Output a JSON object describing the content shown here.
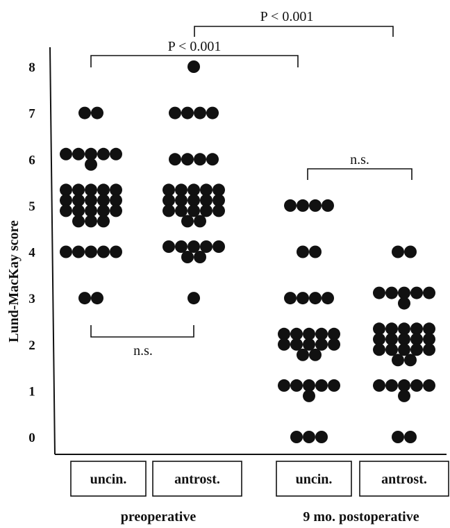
{
  "chart_data": {
    "type": "scatter",
    "ylabel": "Lund-MacKay score",
    "ylim": [
      0,
      8
    ],
    "yticks": [
      "0",
      "1",
      "2",
      "3",
      "4",
      "5",
      "6",
      "7",
      "8"
    ],
    "categories": [
      "uncin.",
      "antrost.",
      "uncin.",
      "antrost."
    ],
    "groups": [
      "preoperative",
      "9 mo. postoperative"
    ],
    "series": [
      {
        "category": "uncin.",
        "group": "preoperative",
        "values": [
          7,
          7,
          6,
          6,
          6,
          6,
          6,
          6,
          5,
          5,
          5,
          5,
          5,
          5,
          5,
          5,
          5,
          5,
          5,
          5,
          5,
          5,
          5,
          5,
          5,
          5,
          4,
          4,
          4,
          4,
          4,
          3,
          3
        ]
      },
      {
        "category": "antrost.",
        "group": "preoperative",
        "values": [
          8,
          7,
          7,
          7,
          7,
          6,
          6,
          6,
          6,
          5,
          5,
          5,
          5,
          5,
          5,
          5,
          5,
          5,
          5,
          5,
          5,
          5,
          5,
          5,
          5,
          5,
          4,
          4,
          4,
          4,
          4,
          4,
          4,
          3
        ]
      },
      {
        "category": "uncin.",
        "group": "9 mo. postoperative",
        "values": [
          5,
          5,
          5,
          5,
          4,
          4,
          3,
          3,
          3,
          3,
          2,
          2,
          2,
          2,
          2,
          2,
          2,
          2,
          2,
          2,
          2,
          2,
          1,
          1,
          1,
          1,
          1,
          1,
          0,
          0,
          0
        ]
      },
      {
        "category": "antrost.",
        "group": "9 mo. postoperative",
        "values": [
          4,
          4,
          3,
          3,
          3,
          3,
          3,
          3,
          2,
          2,
          2,
          2,
          2,
          2,
          2,
          2,
          2,
          2,
          2,
          2,
          2,
          2,
          2,
          2,
          2,
          1,
          1,
          1,
          1,
          1,
          1,
          0,
          0
        ]
      }
    ],
    "comparisons": [
      {
        "label": "P < 0.001",
        "from": "uncin. preoperative",
        "to": "uncin. 9 mo. postoperative"
      },
      {
        "label": "P < 0.001",
        "from": "antrost. preoperative",
        "to": "antrost. 9 mo. postoperative"
      },
      {
        "label": "n.s.",
        "from": "uncin. preoperative",
        "to": "antrost. preoperative"
      },
      {
        "label": "n.s.",
        "from": "uncin. 9 mo. postoperative",
        "to": "antrost. 9 mo. postoperative"
      }
    ]
  }
}
